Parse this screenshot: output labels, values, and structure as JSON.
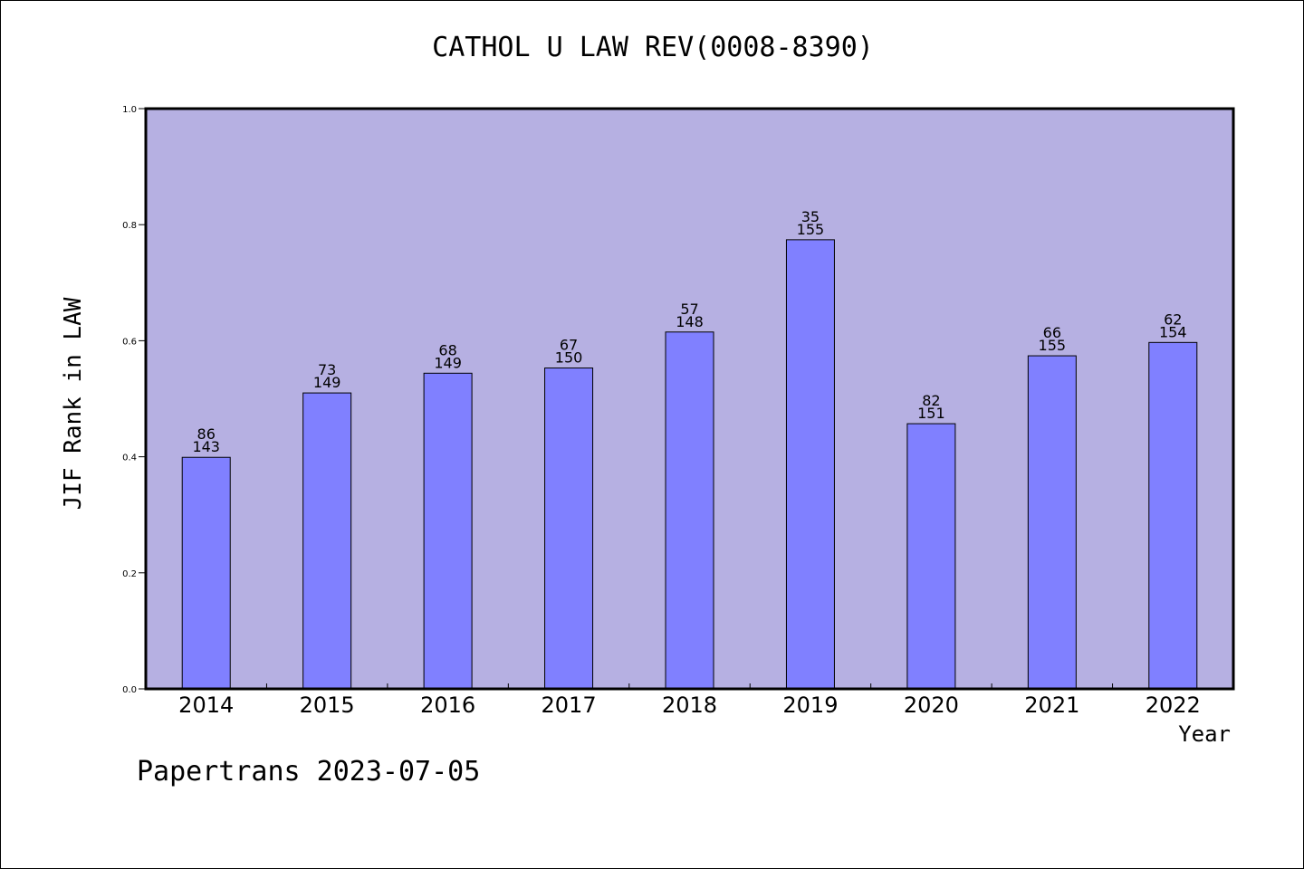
{
  "chart_data": {
    "type": "bar",
    "title": "CATHOL U LAW REV(0008-8390)",
    "xlabel": "Year",
    "ylabel": "JIF Rank in LAW",
    "ylim": [
      0,
      1.0
    ],
    "yticks": [
      "0.0",
      "0.2",
      "0.4",
      "0.6",
      "0.8",
      "1.0"
    ],
    "grid": false,
    "categories": [
      "2014",
      "2015",
      "2016",
      "2017",
      "2018",
      "2019",
      "2020",
      "2021",
      "2022"
    ],
    "values": [
      0.399,
      0.51,
      0.544,
      0.553,
      0.615,
      0.774,
      0.457,
      0.574,
      0.597
    ],
    "rank": [
      "86",
      "73",
      "68",
      "67",
      "57",
      "35",
      "82",
      "66",
      "62"
    ],
    "total": [
      "143",
      "149",
      "149",
      "150",
      "148",
      "155",
      "151",
      "155",
      "154"
    ]
  },
  "colors": {
    "plot_background": "#b6b0e2",
    "bar_fill": "#8080ff",
    "axis": "#000000"
  },
  "footer": "Papertrans 2023-07-05"
}
